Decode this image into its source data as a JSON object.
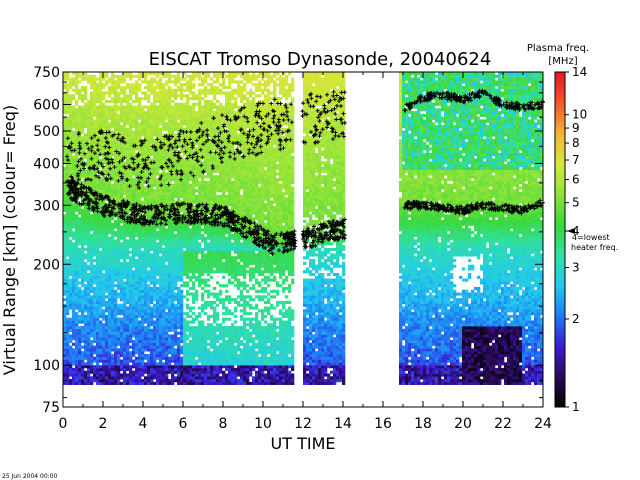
{
  "chart_data": {
    "type": "heatmap",
    "title": "EISCAT Tromso Dynasonde,  20040624",
    "xlabel": "UT TIME",
    "ylabel_parts": [
      "Virtual Range ",
      "[km]",
      "   (colour= Freq)"
    ],
    "x_ticks": [
      0,
      2,
      4,
      6,
      8,
      10,
      12,
      14,
      16,
      18,
      20,
      22,
      24
    ],
    "xlim": [
      0,
      24
    ],
    "y_scale": "log",
    "y_ticks": [
      75,
      100,
      200,
      300,
      400,
      500,
      600,
      750
    ],
    "ylim": [
      75,
      750
    ],
    "grid": false,
    "colorbar": {
      "title_lines": [
        "Plasma freq.",
        "[MHz]"
      ],
      "ticks": [
        1,
        2,
        3,
        4,
        5,
        6,
        7,
        8,
        9,
        10,
        14
      ],
      "range": [
        1,
        14
      ],
      "scale": "log",
      "marker_value": 4,
      "marker_label_lines": [
        "4=lowest",
        "heater freq."
      ],
      "stops": [
        "#000000",
        "#2a0a5a",
        "#3b1bd6",
        "#1f7cf5",
        "#22c9ee",
        "#30e0a0",
        "#3ad83a",
        "#8fe33a",
        "#d8e83a",
        "#f5b33a",
        "#f0582a",
        "#e6142a"
      ]
    },
    "data_gaps_hours": [
      [
        11.62,
        11.95
      ],
      [
        14.1,
        16.75
      ]
    ],
    "profile_traces": {
      "description_values": "virtual range (km) of echo traces by UT hour",
      "f_layer_lower": {
        "x": [
          0.2,
          2,
          4,
          6,
          8,
          9.5,
          10.5,
          11.5,
          12.3,
          13,
          14,
          17,
          18,
          19,
          20,
          21,
          22,
          23,
          24
        ],
        "y": [
          340,
          300,
          280,
          285,
          280,
          250,
          230,
          235,
          240,
          250,
          255,
          300,
          300,
          295,
          290,
          300,
          295,
          290,
          305
        ]
      },
      "f_layer_upper": {
        "x": [
          17,
          18,
          19,
          20,
          21,
          22,
          23,
          24
        ],
        "y": [
          580,
          630,
          640,
          620,
          650,
          600,
          590,
          600
        ]
      }
    },
    "footer_timestamp": "25 Jun 2004 00:00"
  }
}
